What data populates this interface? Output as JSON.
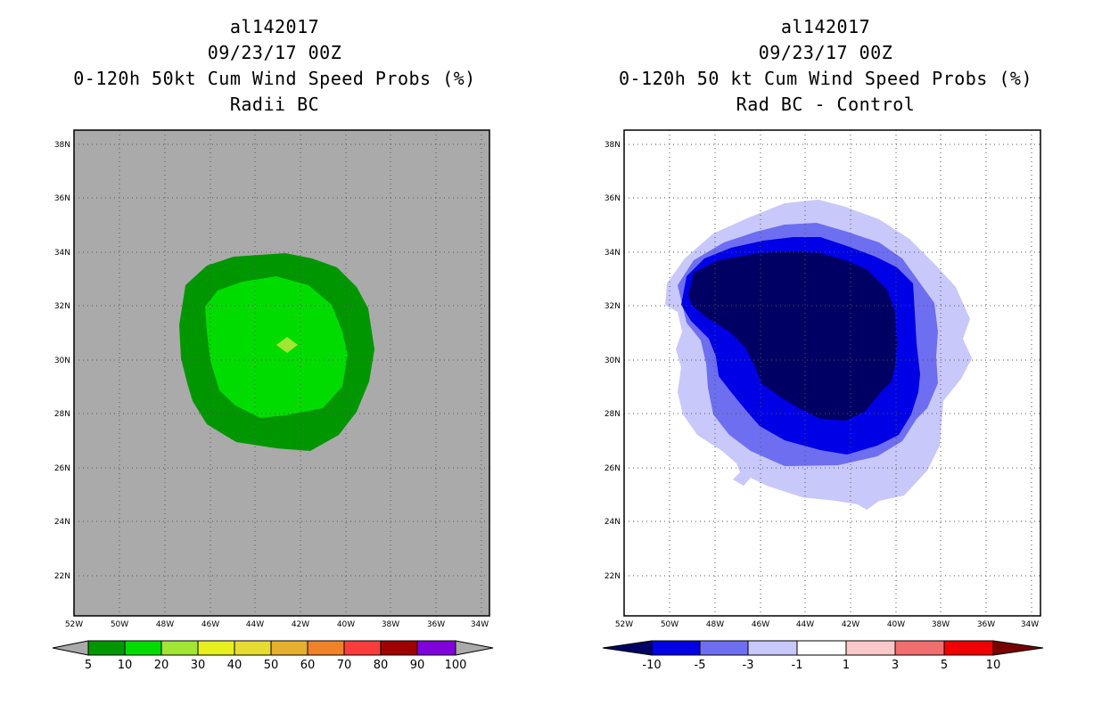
{
  "left_panel": {
    "title_lines": [
      "al142017",
      "09/23/17 00Z",
      "0-120h 50kt Cum Wind Speed Probs (%)",
      "Radii BC"
    ],
    "background_color": "#aaaaaa",
    "colorbar": {
      "labels": [
        "5",
        "10",
        "20",
        "30",
        "40",
        "50",
        "60",
        "70",
        "80",
        "90",
        "100"
      ],
      "colors": [
        "#009600",
        "#00dc00",
        "#a0e632",
        "#e6f01e",
        "#e6dc32",
        "#e6af2d",
        "#f08228",
        "#fa3c3c",
        "#a00000",
        "#8200dc"
      ],
      "end_color": "#aaaaaa"
    },
    "contour_colors": {
      "outer": "#009600",
      "inner": "#00dc00",
      "peak": "#a0e632"
    }
  },
  "right_panel": {
    "title_lines": [
      "al142017",
      "09/23/17 00Z",
      "0-120h 50 kt Cum Wind Speed Probs (%)",
      "Rad BC - Control"
    ],
    "background_color": "#ffffff",
    "colorbar": {
      "labels": [
        "-10",
        "-5",
        "-3",
        "-1",
        "1",
        "3",
        "5",
        "10"
      ],
      "colors": [
        "#0000e6",
        "#6e6ef0",
        "#c8c8fa",
        "#ffffff",
        "#fac8c8",
        "#f06e6e",
        "#f00000"
      ],
      "low_end_color": "#000064",
      "high_end_color": "#780000"
    },
    "contour_colors": {
      "c1": "#c8c8fa",
      "c2": "#6e6ef0",
      "c3": "#0000e6",
      "c4": "#000064"
    }
  },
  "axes": {
    "lat_labels": [
      "38N",
      "36N",
      "34N",
      "32N",
      "30N",
      "28N",
      "26N",
      "24N",
      "22N"
    ],
    "lon_labels": [
      "52W",
      "50W",
      "48W",
      "46W",
      "44W",
      "42W",
      "40W",
      "38W",
      "36W",
      "34W"
    ]
  }
}
